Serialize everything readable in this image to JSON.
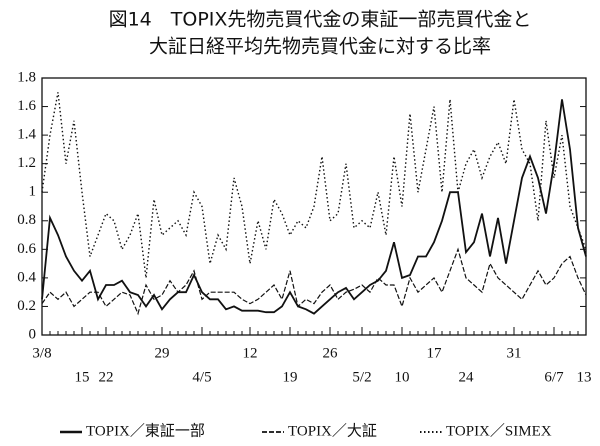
{
  "chart_data": {
    "type": "line",
    "title_lines": [
      "図14　TOPIX先物売買代金の東証一部売買代金と",
      "大証日経平均先物売買代金に対する比率"
    ],
    "categories": [
      "3/8",
      null,
      null,
      null,
      null,
      "15",
      null,
      null,
      "22",
      null,
      null,
      null,
      null,
      null,
      null,
      "29",
      null,
      null,
      null,
      null,
      "4/5",
      null,
      null,
      null,
      null,
      null,
      "12",
      null,
      null,
      null,
      null,
      "19",
      null,
      null,
      null,
      null,
      "26",
      null,
      null,
      null,
      "5/2",
      null,
      null,
      null,
      null,
      "10",
      null,
      null,
      null,
      "17",
      null,
      null,
      null,
      "24",
      null,
      null,
      null,
      null,
      null,
      "31",
      null,
      null,
      null,
      null,
      "6/7",
      null,
      null,
      null,
      "13"
    ],
    "series": [
      {
        "name": "TOPIX／東証一部",
        "color": "#111111",
        "style": "solid",
        "values": [
          0.25,
          0.82,
          0.7,
          0.55,
          0.45,
          0.38,
          0.45,
          0.25,
          0.35,
          0.35,
          0.38,
          0.3,
          0.28,
          0.2,
          0.28,
          0.18,
          0.25,
          0.3,
          0.3,
          0.42,
          0.3,
          0.25,
          0.25,
          0.18,
          0.2,
          0.17,
          0.17,
          0.17,
          0.16,
          0.16,
          0.2,
          0.3,
          0.2,
          0.18,
          0.15,
          0.2,
          0.25,
          0.3,
          0.33,
          0.25,
          0.3,
          0.35,
          0.38,
          0.45,
          0.65,
          0.4,
          0.42,
          0.55,
          0.55,
          0.65,
          0.8,
          1.0,
          1.0,
          0.58,
          0.65,
          0.85,
          0.55,
          0.82,
          0.5,
          0.8,
          1.1,
          1.25,
          1.1,
          0.85,
          1.2,
          1.65,
          1.3,
          0.75,
          0.55
        ]
      },
      {
        "name": "TOPIX／大証",
        "color": "#111111",
        "style": "dashed",
        "values": [
          0.22,
          0.3,
          0.25,
          0.3,
          0.2,
          0.25,
          0.3,
          0.3,
          0.2,
          0.25,
          0.3,
          0.28,
          0.15,
          0.35,
          0.25,
          0.28,
          0.38,
          0.3,
          0.35,
          0.45,
          0.25,
          0.3,
          0.3,
          0.3,
          0.3,
          0.25,
          0.22,
          0.25,
          0.3,
          0.35,
          0.25,
          0.45,
          0.2,
          0.25,
          0.22,
          0.3,
          0.35,
          0.25,
          0.3,
          0.32,
          0.35,
          0.3,
          0.4,
          0.35,
          0.35,
          0.2,
          0.4,
          0.3,
          0.35,
          0.4,
          0.3,
          0.45,
          0.6,
          0.4,
          0.35,
          0.3,
          0.5,
          0.4,
          0.35,
          0.3,
          0.25,
          0.35,
          0.45,
          0.35,
          0.4,
          0.5,
          0.55,
          0.4,
          0.28
        ]
      },
      {
        "name": "TOPIX／SIMEX",
        "color": "#111111",
        "style": "dotted",
        "values": [
          1.0,
          1.4,
          1.7,
          1.2,
          1.5,
          1.0,
          0.55,
          0.7,
          0.85,
          0.8,
          0.6,
          0.7,
          0.85,
          0.4,
          0.95,
          0.7,
          0.75,
          0.8,
          0.7,
          1.0,
          0.9,
          0.5,
          0.7,
          0.6,
          1.1,
          0.9,
          0.5,
          0.8,
          0.6,
          0.95,
          0.85,
          0.7,
          0.8,
          0.75,
          0.9,
          1.25,
          0.8,
          0.85,
          1.2,
          0.75,
          0.8,
          0.75,
          1.0,
          0.7,
          1.25,
          0.9,
          1.55,
          1.0,
          1.3,
          1.6,
          1.0,
          1.65,
          1.0,
          1.2,
          1.3,
          1.1,
          1.25,
          1.35,
          1.2,
          1.65,
          1.3,
          1.2,
          0.8,
          1.5,
          1.1,
          1.4,
          0.9,
          0.75,
          0.6
        ]
      }
    ],
    "ylim": [
      0,
      1.8
    ],
    "yticks": [
      0,
      0.2,
      0.4,
      0.6,
      0.8,
      1,
      1.2,
      1.4,
      1.6,
      1.8
    ],
    "grid": false
  }
}
